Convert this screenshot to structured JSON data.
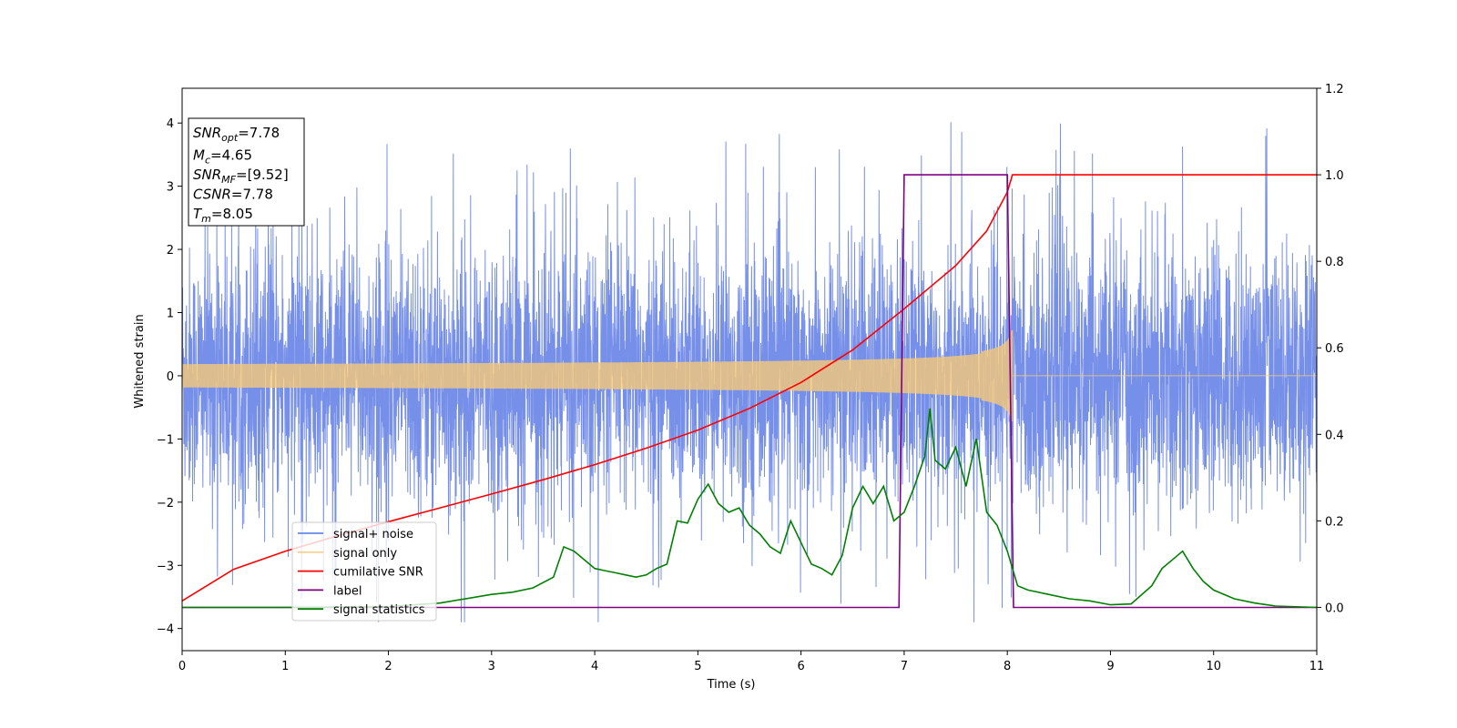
{
  "chart_data": {
    "type": "line",
    "xlabel": "Time (s)",
    "ylabel_left": "Whitened strain",
    "ylabel_right": "",
    "xlim": [
      0,
      11
    ],
    "ylim_left": [
      -4.35,
      4.55
    ],
    "ylim_right": [
      -0.1,
      1.2
    ],
    "xticks": [
      0,
      1,
      2,
      3,
      4,
      5,
      6,
      7,
      8,
      9,
      10,
      11
    ],
    "yticks_left": [
      -4,
      -3,
      -2,
      -1,
      0,
      1,
      2,
      3,
      4
    ],
    "yticks_right": [
      0.0,
      0.2,
      0.4,
      0.6,
      0.8,
      1.0,
      1.2
    ],
    "ytick_labels_right": [
      "0.0",
      "0.2",
      "0.4",
      "0.6",
      "0.8",
      "1.0",
      "1.2"
    ],
    "grid": false,
    "legend_placement": "lower-left",
    "annotation": {
      "lines": [
        {
          "main": "SNR",
          "sub": "opt",
          "value": "=7.78"
        },
        {
          "main": "M",
          "sub": "c",
          "value": "=4.65"
        },
        {
          "main": "SNR",
          "sub": "MF",
          "value": "=[9.52]"
        },
        {
          "main": "CSNR",
          "sub": "",
          "value": "=7.78"
        },
        {
          "main": "T",
          "sub": "m",
          "value": "=8.05"
        }
      ]
    },
    "series": [
      {
        "name": "signal+ noise",
        "color": "#6a86e6",
        "axis": "left",
        "kind": "noise",
        "t_start": 0,
        "t_end": 11,
        "std": 1.0,
        "spike_range": [
          -3.9,
          4.2
        ]
      },
      {
        "name": "signal only",
        "color": "#f5c878",
        "axis": "left",
        "kind": "chirp",
        "t_start": 0,
        "t_end": 8.05,
        "amplitude_start": 0.05,
        "amplitude_peak": 0.85
      },
      {
        "name": "cumilative SNR",
        "color": "#ff0000",
        "axis": "right",
        "x": [
          0,
          0.5,
          1,
          1.5,
          2,
          2.5,
          3,
          3.5,
          4,
          4.5,
          5,
          5.5,
          6,
          6.5,
          7,
          7.5,
          7.8,
          8.0,
          8.05,
          8.1,
          11
        ],
        "y": [
          0.015,
          0.088,
          0.13,
          0.165,
          0.198,
          0.23,
          0.262,
          0.295,
          0.33,
          0.368,
          0.41,
          0.46,
          0.52,
          0.595,
          0.69,
          0.79,
          0.87,
          0.96,
          1.0,
          1.0,
          1.0
        ]
      },
      {
        "name": "label",
        "color": "#800080",
        "axis": "right",
        "x": [
          0,
          6.95,
          7.0,
          8.0,
          8.06,
          11
        ],
        "y": [
          0,
          0,
          1,
          1,
          0,
          0
        ]
      },
      {
        "name": "signal statistics",
        "color": "#008000",
        "axis": "right",
        "x": [
          0,
          1,
          2,
          2.5,
          3,
          3.2,
          3.4,
          3.6,
          3.7,
          3.8,
          3.9,
          4.0,
          4.1,
          4.2,
          4.3,
          4.4,
          4.5,
          4.6,
          4.7,
          4.8,
          4.9,
          5.0,
          5.1,
          5.2,
          5.3,
          5.4,
          5.5,
          5.6,
          5.7,
          5.8,
          5.9,
          6.0,
          6.1,
          6.2,
          6.3,
          6.4,
          6.5,
          6.6,
          6.7,
          6.8,
          6.9,
          7.0,
          7.1,
          7.2,
          7.25,
          7.3,
          7.4,
          7.5,
          7.6,
          7.7,
          7.8,
          7.9,
          8.0,
          8.1,
          8.2,
          8.4,
          8.6,
          8.8,
          9.0,
          9.2,
          9.4,
          9.5,
          9.6,
          9.7,
          9.8,
          9.9,
          10.0,
          10.2,
          10.4,
          10.6,
          11
        ],
        "y": [
          0.0,
          0.0,
          0.002,
          0.01,
          0.03,
          0.035,
          0.045,
          0.07,
          0.14,
          0.13,
          0.11,
          0.09,
          0.085,
          0.08,
          0.075,
          0.07,
          0.075,
          0.09,
          0.1,
          0.2,
          0.195,
          0.25,
          0.285,
          0.24,
          0.22,
          0.23,
          0.19,
          0.17,
          0.14,
          0.125,
          0.2,
          0.15,
          0.1,
          0.09,
          0.075,
          0.12,
          0.23,
          0.28,
          0.24,
          0.28,
          0.2,
          0.22,
          0.28,
          0.35,
          0.46,
          0.34,
          0.32,
          0.37,
          0.28,
          0.39,
          0.22,
          0.19,
          0.13,
          0.05,
          0.04,
          0.03,
          0.02,
          0.015,
          0.006,
          0.008,
          0.05,
          0.09,
          0.11,
          0.13,
          0.09,
          0.06,
          0.04,
          0.02,
          0.01,
          0.003,
          0.0
        ]
      }
    ]
  }
}
